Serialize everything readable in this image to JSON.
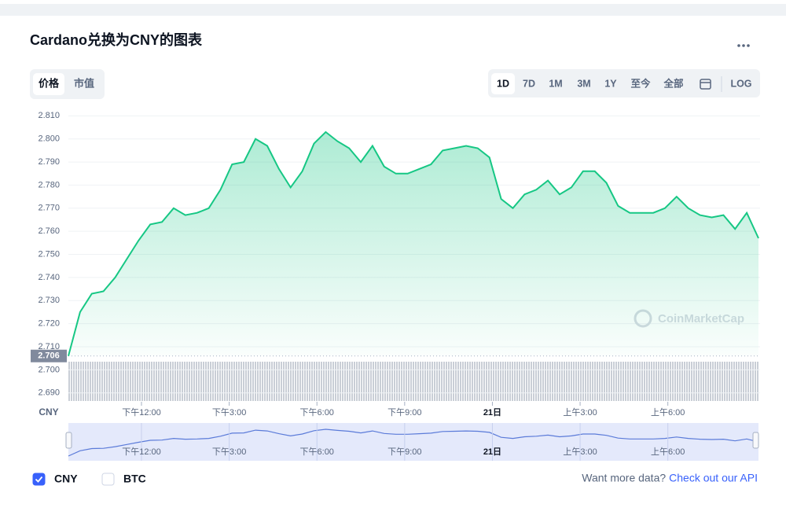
{
  "ui": {
    "title": "Cardano兑换为CNY的图表",
    "tabs": [
      "价格",
      "市值"
    ],
    "active_tab": 0,
    "ranges": [
      "1D",
      "7D",
      "1M",
      "3M",
      "1Y",
      "至今",
      "全部",
      "LOG"
    ],
    "active_range": 0,
    "watermark": "CoinMarketCap",
    "currency_label": "CNY",
    "legend": [
      {
        "name": "CNY",
        "checked": true
      },
      {
        "name": "BTC",
        "checked": false
      }
    ],
    "footer": {
      "question": "Want more data?",
      "link": "Check out our API"
    }
  },
  "chart_data": {
    "type": "line",
    "color": "#16c784",
    "grid": true,
    "reference": 2.706,
    "x": [
      9.5,
      9.9,
      10.3,
      10.7,
      11.1,
      11.5,
      11.9,
      12.3,
      12.7,
      13.1,
      13.5,
      13.9,
      14.3,
      14.7,
      15.1,
      15.5,
      15.9,
      16.3,
      16.7,
      17.1,
      17.5,
      17.9,
      18.3,
      18.7,
      19.1,
      19.5,
      19.9,
      20.3,
      20.7,
      21.1,
      21.5,
      21.9,
      22.3,
      22.7,
      23.1,
      23.5,
      23.9,
      24.3,
      24.7,
      25.1,
      25.5,
      25.9,
      26.3,
      26.7,
      27.1,
      27.5,
      27.9,
      28.3,
      28.7,
      29.1,
      29.5,
      29.9,
      30.3,
      30.7,
      31.1,
      31.5,
      31.9,
      32.3,
      32.7,
      33.1
    ],
    "values": [
      2.706,
      2.725,
      2.733,
      2.734,
      2.74,
      2.748,
      2.756,
      2.763,
      2.764,
      2.77,
      2.767,
      2.768,
      2.77,
      2.778,
      2.789,
      2.79,
      2.8,
      2.797,
      2.787,
      2.779,
      2.786,
      2.798,
      2.803,
      2.799,
      2.796,
      2.79,
      2.797,
      2.788,
      2.785,
      2.785,
      2.787,
      2.789,
      2.795,
      2.796,
      2.797,
      2.796,
      2.792,
      2.774,
      2.77,
      2.776,
      2.778,
      2.782,
      2.776,
      2.779,
      2.786,
      2.786,
      2.781,
      2.771,
      2.768,
      2.768,
      2.768,
      2.77,
      2.775,
      2.77,
      2.767,
      2.766,
      2.767,
      2.761,
      2.768,
      2.757
    ],
    "xlim": [
      9.5,
      33.1
    ],
    "ylim": [
      2.6865,
      2.8125
    ],
    "yticks": [
      {
        "value": 2.69,
        "label": "2.690"
      },
      {
        "value": 2.7,
        "label": "2.700"
      },
      {
        "value": 2.71,
        "label": "2.710"
      },
      {
        "value": 2.72,
        "label": "2.720"
      },
      {
        "value": 2.73,
        "label": "2.730"
      },
      {
        "value": 2.74,
        "label": "2.740"
      },
      {
        "value": 2.75,
        "label": "2.750"
      },
      {
        "value": 2.76,
        "label": "2.760"
      },
      {
        "value": 2.77,
        "label": "2.770"
      },
      {
        "value": 2.78,
        "label": "2.780"
      },
      {
        "value": 2.79,
        "label": "2.790"
      },
      {
        "value": 2.8,
        "label": "2.800"
      },
      {
        "value": 2.81,
        "label": "2.810"
      }
    ],
    "xticks": [
      {
        "value": 12,
        "label": "下午12:00"
      },
      {
        "value": 15,
        "label": "下午3:00"
      },
      {
        "value": 18,
        "label": "下午6:00"
      },
      {
        "value": 21,
        "label": "下午9:00"
      },
      {
        "value": 24,
        "label": "21日"
      },
      {
        "value": 27,
        "label": "上午3:00"
      },
      {
        "value": 30,
        "label": "上午6:00"
      }
    ]
  }
}
